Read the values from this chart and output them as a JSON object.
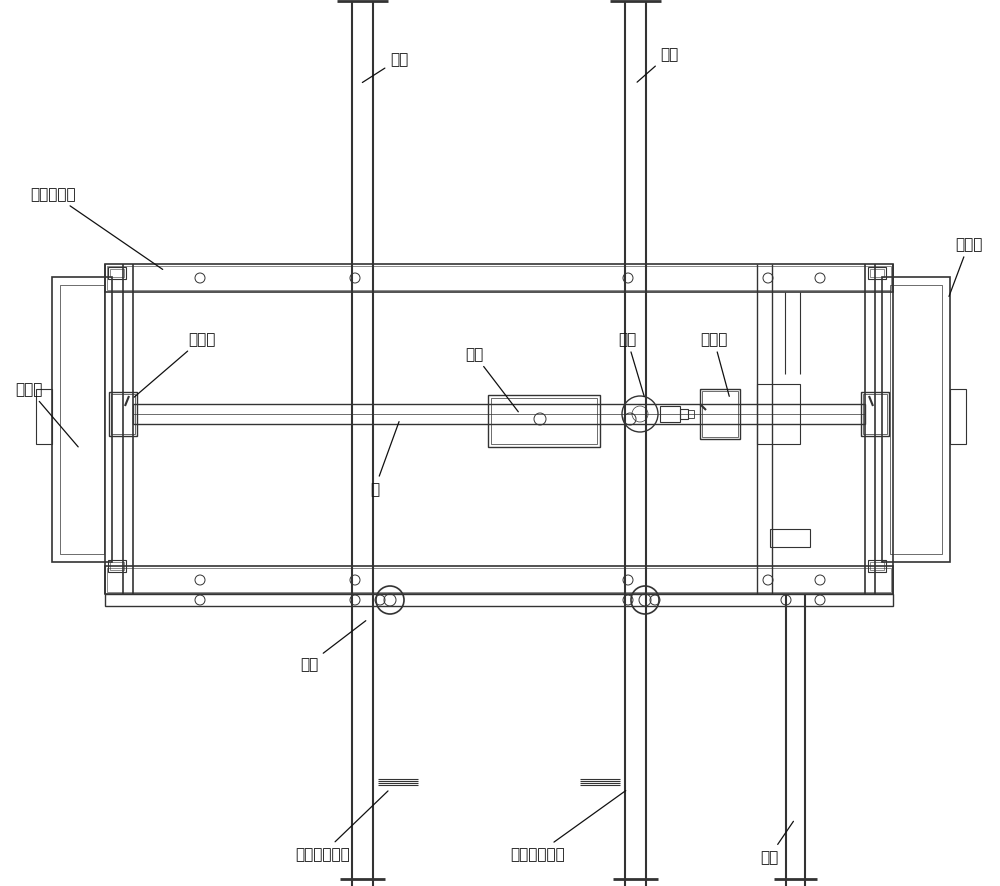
{
  "fig_width": 10.0,
  "fig_height": 8.87,
  "bg_color": "#ffffff",
  "line_color": "#333333",
  "labels": {
    "track_top_left": "轨道",
    "track_top_right": "轨道",
    "crane_frame": "喂料行车架",
    "hopper_left": "下料斗",
    "hopper_right": "下料斗",
    "track_wheel_left": "轨道轮",
    "motor": "电机",
    "sprocket": "链轮",
    "track_wheel_right": "轨道轮",
    "shaft": "轴",
    "track_bottom": "轨道",
    "track_bottom_right": "轨道",
    "pos_bar": "正极供电横杆",
    "neg_bar": "负极供电横杆"
  }
}
